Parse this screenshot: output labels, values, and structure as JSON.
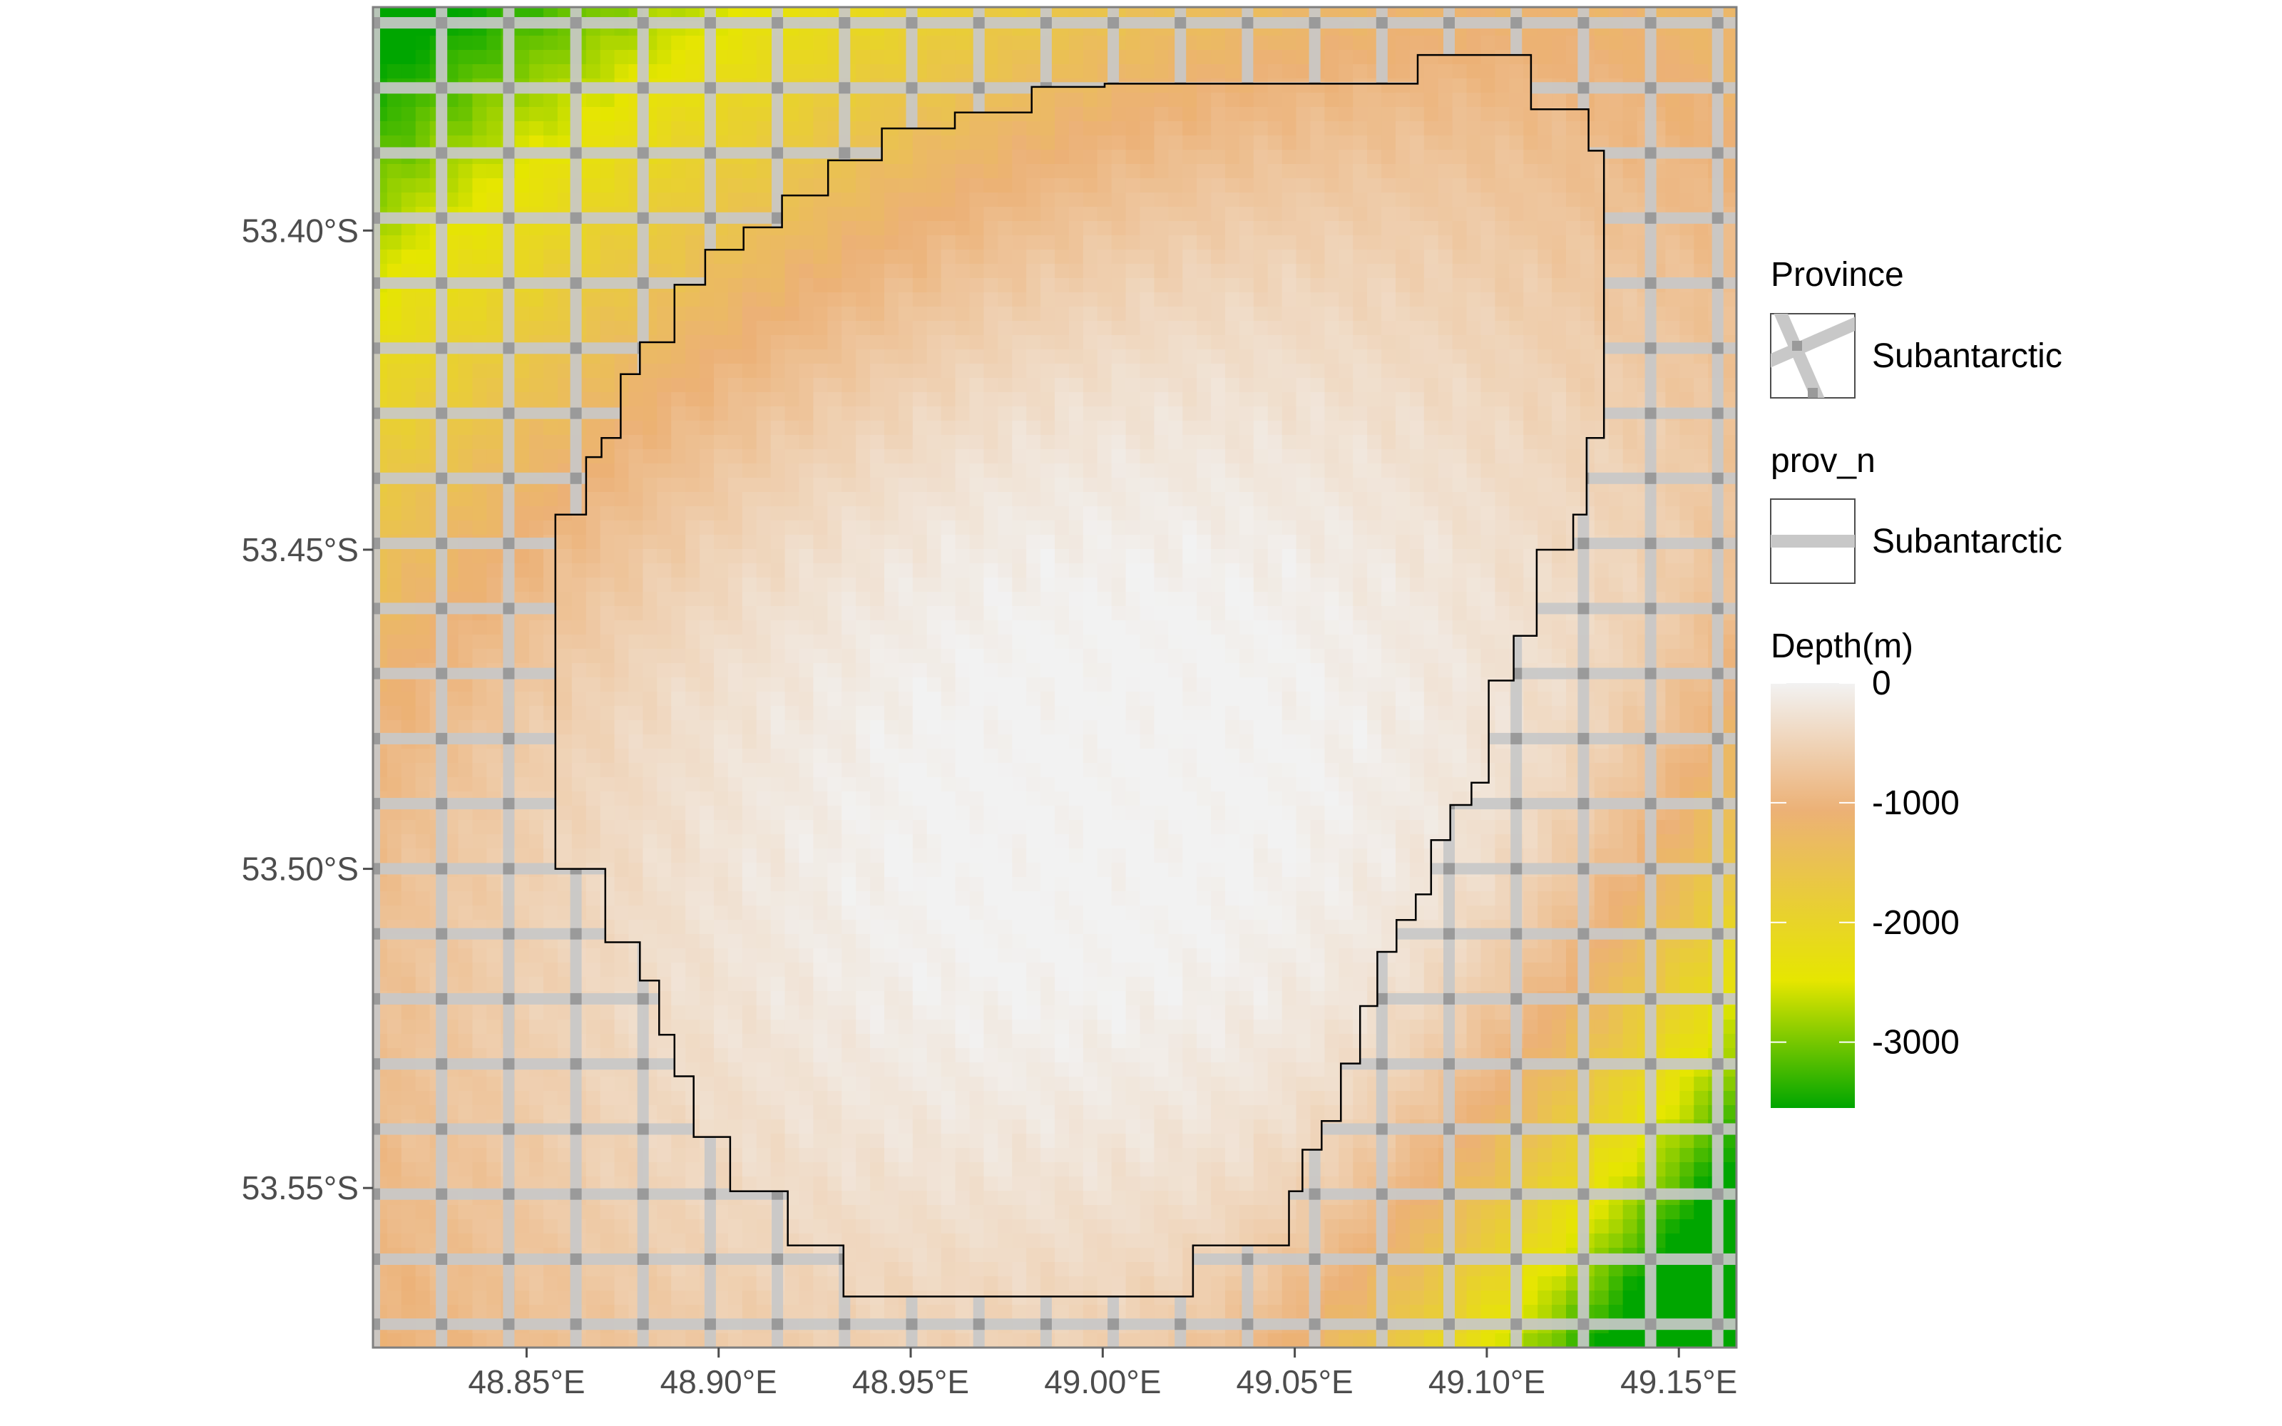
{
  "chart_data": {
    "type": "heatmap",
    "subtype": "raster map with polygon overlay",
    "x_tick_labels": [
      "48.85°E",
      "48.90°E",
      "48.95°E",
      "49.00°E",
      "49.05°E",
      "49.10°E",
      "49.15°E"
    ],
    "x_tick_values": [
      48.85,
      48.9,
      48.95,
      49.0,
      49.05,
      49.1,
      49.15
    ],
    "y_tick_labels": [
      "53.40°S",
      "53.45°S",
      "53.50°S",
      "53.55°S"
    ],
    "y_tick_values": [
      -53.4,
      -53.45,
      -53.5,
      -53.55
    ],
    "xlim": [
      48.81,
      49.165
    ],
    "ylim": [
      -53.575,
      -53.365
    ],
    "grid": false,
    "depth_scale": {
      "title": "Depth(m)",
      "breaks": [
        0,
        -1000,
        -2000,
        -3000
      ],
      "break_labels": [
        "0",
        "-1000",
        "-2000",
        "-3000"
      ],
      "range": [
        -3550,
        0
      ],
      "colors": [
        "#00a600",
        "#e6e600",
        "#ecb176",
        "#f2f2f2"
      ]
    },
    "provinces": {
      "title": "Province",
      "entries": [
        "Subantarctic"
      ],
      "fill_pattern": "crosshatch"
    },
    "prov_n": {
      "title": "prov_n",
      "entries": [
        "Subantarctic"
      ]
    },
    "depth_model": {
      "description": "Shallow bank centered near 49.00°E, 53.49°S; depth increases toward the northwest corner and the southeast corner.",
      "approx_depths": [
        {
          "x": 48.82,
          "y": -53.37,
          "depth": -3500
        },
        {
          "x": 48.85,
          "y": -53.4,
          "depth": -2900
        },
        {
          "x": 48.95,
          "y": -53.37,
          "depth": -2400
        },
        {
          "x": 49.15,
          "y": -53.37,
          "depth": -900
        },
        {
          "x": 49.0,
          "y": -53.49,
          "depth": -30
        },
        {
          "x": 48.84,
          "y": -53.52,
          "depth": -1000
        },
        {
          "x": 49.15,
          "y": -53.57,
          "depth": -3000
        }
      ]
    },
    "bank_outline": [
      [
        49.082,
        -53.3725
      ],
      [
        49.1115,
        -53.3725
      ],
      [
        49.1115,
        -53.381
      ],
      [
        49.1265,
        -53.381
      ],
      [
        49.1265,
        -53.3875
      ],
      [
        49.1305,
        -53.3875
      ],
      [
        49.1305,
        -53.4325
      ],
      [
        49.126,
        -53.4325
      ],
      [
        49.126,
        -53.4445
      ],
      [
        49.1225,
        -53.4445
      ],
      [
        49.1225,
        -53.45
      ],
      [
        49.113,
        -53.45
      ],
      [
        49.113,
        -53.4635
      ],
      [
        49.107,
        -53.4635
      ],
      [
        49.107,
        -53.4705
      ],
      [
        49.1005,
        -53.4705
      ],
      [
        49.1005,
        -53.4865
      ],
      [
        49.096,
        -53.4865
      ],
      [
        49.096,
        -53.49
      ],
      [
        49.0905,
        -53.49
      ],
      [
        49.0905,
        -53.4955
      ],
      [
        49.0855,
        -53.4955
      ],
      [
        49.0855,
        -53.504
      ],
      [
        49.0815,
        -53.504
      ],
      [
        49.0815,
        -53.508
      ],
      [
        49.0765,
        -53.508
      ],
      [
        49.0765,
        -53.513
      ],
      [
        49.0715,
        -53.513
      ],
      [
        49.0715,
        -53.5215
      ],
      [
        49.067,
        -53.5215
      ],
      [
        49.067,
        -53.5305
      ],
      [
        49.062,
        -53.5305
      ],
      [
        49.062,
        -53.5395
      ],
      [
        49.057,
        -53.5395
      ],
      [
        49.057,
        -53.544
      ],
      [
        49.052,
        -53.544
      ],
      [
        49.052,
        -53.5505
      ],
      [
        49.0485,
        -53.5505
      ],
      [
        49.0485,
        -53.559
      ],
      [
        49.0235,
        -53.559
      ],
      [
        49.0235,
        -53.567
      ],
      [
        48.9325,
        -53.567
      ],
      [
        48.9325,
        -53.559
      ],
      [
        48.918,
        -53.559
      ],
      [
        48.918,
        -53.5505
      ],
      [
        48.903,
        -53.5505
      ],
      [
        48.903,
        -53.542
      ],
      [
        48.8935,
        -53.542
      ],
      [
        48.8935,
        -53.5325
      ],
      [
        48.8885,
        -53.5325
      ],
      [
        48.8885,
        -53.526
      ],
      [
        48.8845,
        -53.526
      ],
      [
        48.8845,
        -53.5175
      ],
      [
        48.8795,
        -53.5175
      ],
      [
        48.8795,
        -53.5115
      ],
      [
        48.8705,
        -53.5115
      ],
      [
        48.8705,
        -53.504
      ],
      [
        48.8705,
        -53.504
      ],
      [
        48.8705,
        -53.5
      ],
      [
        48.8575,
        -53.5
      ],
      [
        48.8575,
        -53.4955
      ],
      [
        48.8575,
        -53.4955
      ],
      [
        48.8575,
        -53.4445
      ],
      [
        48.8655,
        -53.4445
      ],
      [
        48.8655,
        -53.4355
      ],
      [
        48.8695,
        -53.4355
      ],
      [
        48.8695,
        -53.4325
      ],
      [
        48.8745,
        -53.4325
      ],
      [
        48.8745,
        -53.4225
      ],
      [
        48.8795,
        -53.4225
      ],
      [
        48.8795,
        -53.4175
      ],
      [
        48.8885,
        -53.4175
      ],
      [
        48.8885,
        -53.4085
      ],
      [
        48.8965,
        -53.4085
      ],
      [
        48.8965,
        -53.403
      ],
      [
        48.9065,
        -53.403
      ],
      [
        48.9065,
        -53.3995
      ],
      [
        48.9165,
        -53.3995
      ],
      [
        48.9165,
        -53.3945
      ],
      [
        48.9285,
        -53.3945
      ],
      [
        48.9285,
        -53.389
      ],
      [
        48.9425,
        -53.389
      ],
      [
        48.9425,
        -53.384
      ],
      [
        48.9615,
        -53.384
      ],
      [
        48.9615,
        -53.3815
      ],
      [
        48.9815,
        -53.3815
      ],
      [
        48.9815,
        -53.3775
      ],
      [
        49.0005,
        -53.3775
      ],
      [
        49.0005,
        -53.377
      ],
      [
        49.082,
        -53.377
      ],
      [
        49.082,
        -53.3725
      ]
    ]
  },
  "legend": {
    "province_title": "Province",
    "province_label": "Subantarctic",
    "prov_n_title": "prov_n",
    "prov_n_label": "Subantarctic",
    "depth_title": "Depth(m)",
    "depth_labels": [
      "0",
      "-1000",
      "-2000",
      "-3000"
    ]
  }
}
